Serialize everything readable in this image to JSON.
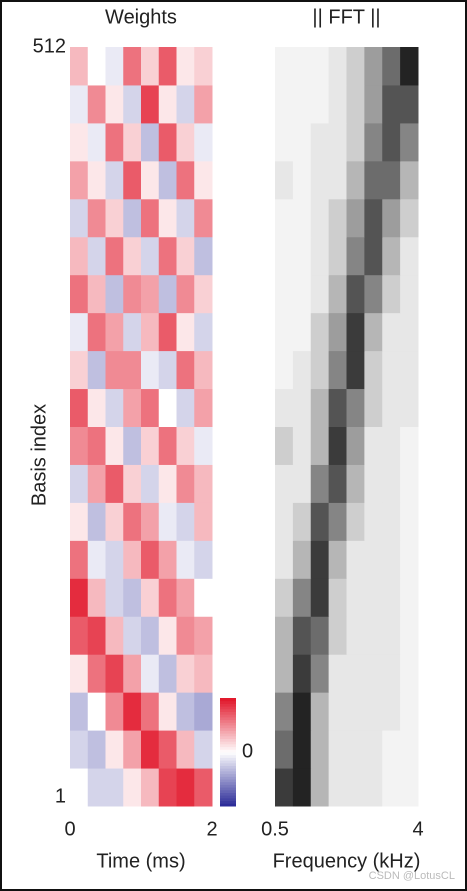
{
  "chart_data": [
    {
      "type": "heatmap",
      "title": "Weights",
      "xlabel": "Time (ms)",
      "ylabel": "Basis index",
      "xlim": [
        0,
        2
      ],
      "xticks": [
        0,
        2
      ],
      "ylim": [
        1,
        512
      ],
      "yticks": [
        1,
        512
      ],
      "colormap": "diverging",
      "colorbar": {
        "lim": [
          -1,
          1
        ],
        "ticks": [
          0
        ]
      },
      "values": [
        [
          0,
          -0.2,
          -0.2,
          0.1,
          0.3,
          0.8,
          0.9,
          0.7
        ],
        [
          -0.2,
          -0.3,
          0.1,
          0.4,
          0.9,
          0.7,
          0.3,
          -0.2
        ],
        [
          -0.3,
          0,
          0.5,
          0.9,
          0.6,
          0.1,
          -0.3,
          -0.4
        ],
        [
          0.1,
          0.6,
          0.8,
          0.4,
          -0.1,
          -0.3,
          0.2,
          0.3
        ],
        [
          0.7,
          0.8,
          0.3,
          -0.2,
          -0.3,
          0.1,
          0.5,
          0.4
        ],
        [
          0.9,
          0.3,
          -0.2,
          -0.3,
          0.2,
          0.6,
          0.4,
          0
        ],
        [
          0.6,
          -0.1,
          -0.2,
          0.3,
          0.7,
          0.4,
          -0.1,
          -0.2
        ],
        [
          0.1,
          -0.3,
          0.2,
          0.6,
          0.4,
          -0.1,
          -0.2,
          0.3
        ],
        [
          -0.2,
          0.4,
          0.7,
          0.2,
          -0.2,
          0.1,
          0.5,
          0.3
        ],
        [
          0.5,
          0.6,
          0.1,
          -0.3,
          0.2,
          0.6,
          0.2,
          -0.1
        ],
        [
          0.7,
          0.1,
          -0.2,
          0.4,
          0.6,
          0,
          -0.2,
          0.4
        ],
        [
          0.2,
          -0.3,
          0.5,
          0.5,
          -0.1,
          -0.2,
          0.6,
          0.3
        ],
        [
          -0.1,
          0.6,
          0.4,
          -0.2,
          0.3,
          0.7,
          0.1,
          -0.2
        ],
        [
          0.6,
          0.3,
          -0.3,
          0.5,
          0.4,
          -0.3,
          0.5,
          0.2
        ],
        [
          0.3,
          -0.2,
          0.6,
          0.2,
          -0.2,
          0.6,
          0.2,
          -0.3
        ],
        [
          -0.2,
          0.5,
          0.2,
          -0.3,
          0.6,
          0.1,
          -0.2,
          0.5
        ],
        [
          0.4,
          0.1,
          -0.2,
          0.7,
          0.1,
          -0.3,
          0.6,
          0.1
        ],
        [
          0.1,
          -0.1,
          0.6,
          0.2,
          -0.3,
          0.7,
          0.2,
          -0.1
        ],
        [
          -0.1,
          0.5,
          0.1,
          -0.2,
          0.8,
          0.1,
          -0.2,
          0.4
        ],
        [
          0.3,
          0,
          -0.1,
          0.6,
          0.2,
          0.7,
          0.1,
          0.2
        ]
      ]
    },
    {
      "type": "heatmap",
      "title": "|| FFT ||",
      "xlabel": "Frequency (kHz)",
      "xlim": [
        0.5,
        4
      ],
      "xticks": [
        0.5,
        4
      ],
      "ylim": [
        1,
        512
      ],
      "colormap": "gray",
      "values": [
        [
          0.8,
          0.9,
          0.3,
          0.1,
          0.1,
          0.1,
          0.05,
          0.05
        ],
        [
          0.6,
          0.9,
          0.3,
          0.1,
          0.1,
          0.1,
          0.05,
          0.05
        ],
        [
          0.5,
          0.9,
          0.3,
          0.1,
          0.1,
          0.1,
          0.1,
          0.05
        ],
        [
          0.3,
          0.8,
          0.5,
          0.1,
          0.1,
          0.1,
          0.1,
          0.05
        ],
        [
          0.3,
          0.7,
          0.6,
          0.2,
          0.1,
          0.1,
          0.1,
          0.05
        ],
        [
          0.2,
          0.5,
          0.8,
          0.2,
          0.1,
          0.1,
          0.1,
          0.05
        ],
        [
          0.1,
          0.3,
          0.8,
          0.3,
          0.1,
          0.1,
          0.1,
          0.05
        ],
        [
          0.1,
          0.2,
          0.7,
          0.5,
          0.2,
          0.1,
          0.1,
          0.05
        ],
        [
          0.1,
          0.1,
          0.5,
          0.7,
          0.3,
          0.1,
          0.1,
          0.05
        ],
        [
          0.2,
          0.1,
          0.3,
          0.8,
          0.4,
          0.1,
          0.1,
          0.05
        ],
        [
          0.1,
          0.1,
          0.3,
          0.7,
          0.5,
          0.2,
          0.1,
          0.1
        ],
        [
          0.05,
          0.1,
          0.2,
          0.5,
          0.8,
          0.2,
          0.1,
          0.1
        ],
        [
          0.05,
          0.05,
          0.2,
          0.4,
          0.8,
          0.3,
          0.1,
          0.1
        ],
        [
          0.05,
          0.05,
          0.1,
          0.3,
          0.7,
          0.5,
          0.2,
          0.1
        ],
        [
          0.05,
          0.05,
          0.1,
          0.2,
          0.5,
          0.7,
          0.3,
          0.1
        ],
        [
          0.05,
          0.05,
          0.1,
          0.2,
          0.4,
          0.7,
          0.4,
          0.2
        ],
        [
          0.1,
          0.05,
          0.1,
          0.1,
          0.3,
          0.6,
          0.6,
          0.3
        ],
        [
          0.05,
          0.05,
          0.1,
          0.1,
          0.2,
          0.5,
          0.7,
          0.5
        ],
        [
          0.05,
          0.05,
          0.05,
          0.1,
          0.2,
          0.4,
          0.7,
          0.7
        ],
        [
          0.05,
          0.05,
          0.05,
          0.1,
          0.2,
          0.4,
          0.6,
          0.9
        ]
      ]
    }
  ],
  "watermark": "CSDN @LotusCL"
}
